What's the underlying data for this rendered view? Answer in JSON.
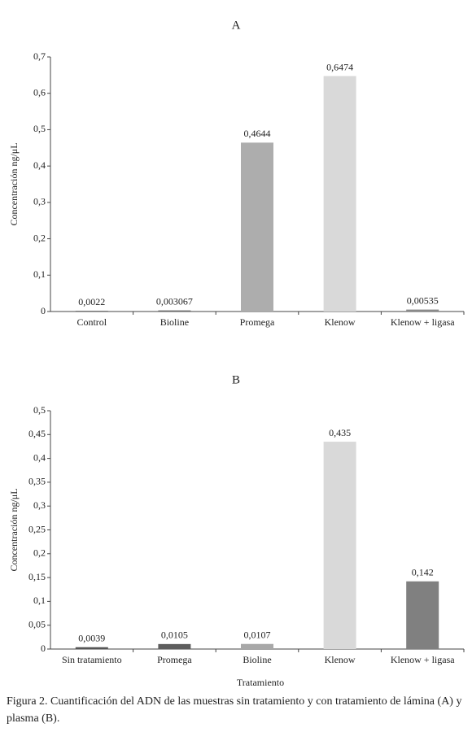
{
  "chart_data": [
    {
      "type": "bar",
      "title": "A",
      "y_label": "Concentración ng/μL",
      "categories": [
        "Control",
        "Bioline",
        "Promega",
        "Klenow",
        "Klenow + ligasa"
      ],
      "values": [
        0.0022,
        0.003067,
        0.4644,
        0.6474,
        0.00535
      ],
      "value_labels": [
        "0,0022",
        "0,003067",
        "0,4644",
        "0,6474",
        "0,00535"
      ],
      "colors": [
        "#7a7a7a",
        "#6e6e6e",
        "#adadad",
        "#d9d9d9",
        "#8a8a8a"
      ],
      "ylim": [
        0,
        0.7
      ],
      "yticks": [
        0,
        {
          "value": 0.1,
          "label": "0,1"
        },
        {
          "value": 0.2,
          "label": "0,2"
        },
        {
          "value": 0.3,
          "label": "0,3"
        },
        {
          "value": 0.4,
          "label": "0,4"
        },
        {
          "value": 0.5,
          "label": "0,5"
        },
        {
          "value": 0.6,
          "label": "0,6"
        },
        {
          "value": 0.7,
          "label": "0,7"
        }
      ],
      "grid": false
    },
    {
      "type": "bar",
      "title": "B",
      "y_label": "Concentración ng/μL",
      "x_label": "Tratamiento",
      "categories": [
        "Sin tratamiento",
        "Promega",
        "Bioline",
        "Klenow",
        "Klenow + ligasa"
      ],
      "values": [
        0.0039,
        0.0105,
        0.0107,
        0.435,
        0.142
      ],
      "value_labels": [
        "0,0039",
        "0,0105",
        "0,0107",
        "0,435",
        "0,142"
      ],
      "colors": [
        "#555555",
        "#5e5e5e",
        "#a8a8a8",
        "#d9d9d9",
        "#808080"
      ],
      "ylim": [
        0,
        0.5
      ],
      "yticks": [
        0,
        {
          "value": 0.05,
          "label": "0,05"
        },
        {
          "value": 0.1,
          "label": "0,1"
        },
        {
          "value": 0.15,
          "label": "0,15"
        },
        {
          "value": 0.2,
          "label": "0,2"
        },
        {
          "value": 0.25,
          "label": "0,25"
        },
        {
          "value": 0.3,
          "label": "0,3"
        },
        {
          "value": 0.35,
          "label": "0,35"
        },
        {
          "value": 0.4,
          "label": "0,4"
        },
        {
          "value": 0.45,
          "label": "0,45"
        },
        {
          "value": 0.5,
          "label": "0,5"
        }
      ],
      "grid": false
    }
  ],
  "caption": "Figura 2. Cuantificación del ADN de las muestras sin tratamiento y con tratamiento de lámina (A) y plasma (B)."
}
